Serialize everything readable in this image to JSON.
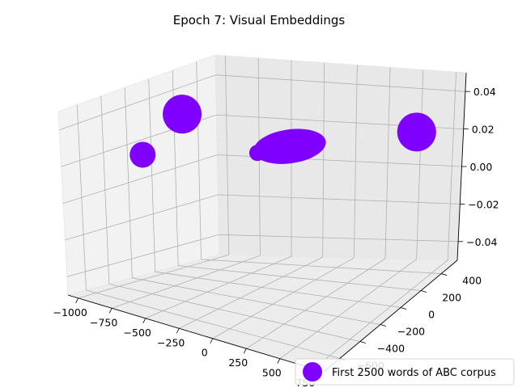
{
  "chart_data": {
    "type": "scatter",
    "projection": "3d",
    "title": "Epoch 7: Visual Embeddings",
    "xlabel": "",
    "ylabel": "",
    "zlabel": "",
    "x_ticks": [
      "−1000",
      "−750",
      "−500",
      "−250",
      "0",
      "250",
      "500",
      "750"
    ],
    "y_ticks": [
      "−600",
      "−400",
      "−200",
      "0",
      "200",
      "400"
    ],
    "z_ticks": [
      "−0.04",
      "−0.02",
      "0.00",
      "0.02",
      "0.04"
    ],
    "grid": true,
    "marker_color": "#7f00ff",
    "legend": {
      "placement": "lower-right",
      "entries": [
        "First 2500 words of ABC corpus"
      ]
    },
    "series": [
      {
        "name": "First 2500 words of ABC corpus",
        "points": [
          {
            "x": -800,
            "y": 0,
            "z": 0,
            "size": "large"
          },
          {
            "x": -750,
            "y": -450,
            "z": 0,
            "size": "medium"
          },
          {
            "x": 600,
            "y": 450,
            "z": 0,
            "size": "large"
          },
          {
            "x": 0,
            "y": 0,
            "z": 0,
            "size": "cluster"
          }
        ]
      }
    ]
  }
}
